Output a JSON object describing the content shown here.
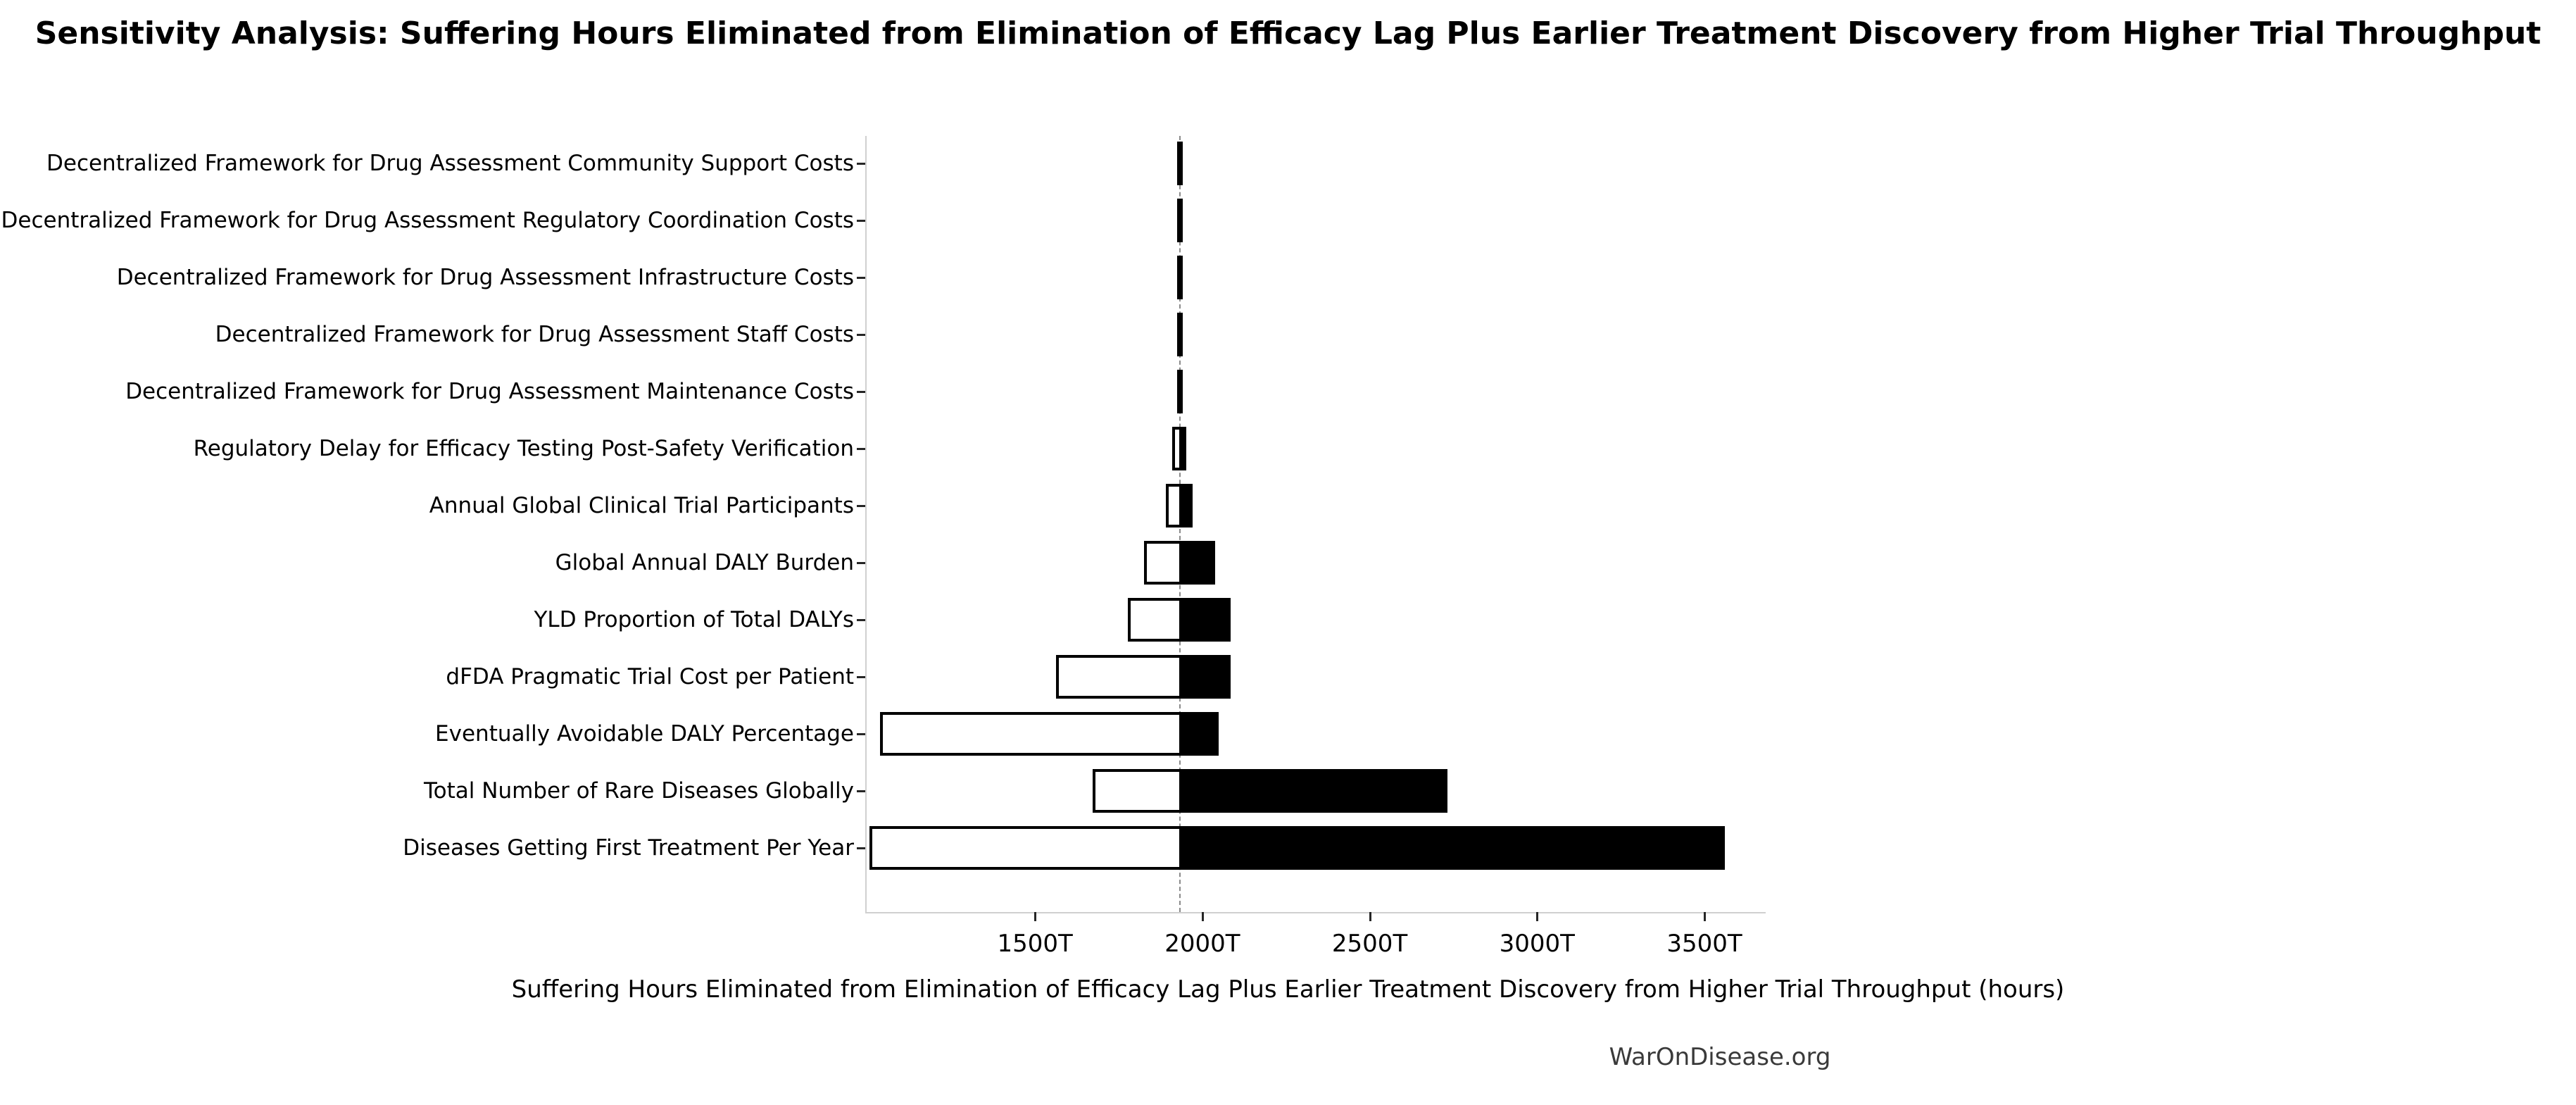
{
  "title": "Sensitivity Analysis: Suffering Hours Eliminated from Elimination of Efficacy Lag Plus Earlier Treatment Discovery from Higher Trial Throughput",
  "footer": "WarOnDisease.org",
  "chart_data": {
    "type": "bar",
    "subtype": "tornado-sensitivity",
    "orientation": "horizontal",
    "title": "Sensitivity Analysis: Suffering Hours Eliminated from Elimination of Efficacy Lag Plus Earlier Treatment Discovery from Higher Trial Throughput",
    "xlabel": "Suffering Hours Eliminated from Elimination of Efficacy Lag Plus Earlier Treatment Discovery from Higher Trial Throughput (hours)",
    "baseline_value": 1931,
    "value_unit": "T (trillions of hours)",
    "xlim": [
      997,
      3683
    ],
    "grid": false,
    "legend": "none",
    "x_ticks": [
      {
        "value": 1500,
        "label": "1500T"
      },
      {
        "value": 2000,
        "label": "2000T"
      },
      {
        "value": 2500,
        "label": "2500T"
      },
      {
        "value": 3000,
        "label": "3000T"
      },
      {
        "value": 3500,
        "label": "3500T"
      }
    ],
    "bars": [
      {
        "label": "Decentralized Framework for Drug Assessment Community Support Costs",
        "low": 1924,
        "high": 1938
      },
      {
        "label": "Decentralized Framework for Drug Assessment Regulatory Coordination Costs",
        "low": 1924,
        "high": 1938
      },
      {
        "label": "Decentralized Framework for Drug Assessment Infrastructure Costs",
        "low": 1924,
        "high": 1938
      },
      {
        "label": "Decentralized Framework for Drug Assessment Staff Costs",
        "low": 1924,
        "high": 1938
      },
      {
        "label": "Decentralized Framework for Drug Assessment Maintenance Costs",
        "low": 1924,
        "high": 1938
      },
      {
        "label": "Regulatory Delay for Efficacy Testing Post-Safety Verification",
        "low": 1910,
        "high": 1952
      },
      {
        "label": "Annual Global Clinical Trial Participants",
        "low": 1891,
        "high": 1971
      },
      {
        "label": "Global Annual DALY Burden",
        "low": 1826,
        "high": 2039
      },
      {
        "label": "YLD Proportion of Total DALYs",
        "low": 1777,
        "high": 2084
      },
      {
        "label": "dFDA Pragmatic Trial Cost per Patient",
        "low": 1562,
        "high": 2085
      },
      {
        "label": "Eventually Avoidable DALY Percentage",
        "low": 1036,
        "high": 2048
      },
      {
        "label": "Total Number of Rare Diseases Globally",
        "low": 1673,
        "high": 2733
      },
      {
        "label": "Diseases Getting First Treatment Per Year",
        "low": 1006,
        "high": 3562
      }
    ],
    "bar_style": {
      "fill_below_baseline": "#ffffff",
      "fill_above_baseline": "#000000",
      "edge_color": "#000000"
    }
  },
  "colors": {
    "background": "#ffffff",
    "bar_edge": "#000000",
    "bar_fill_right": "#000000",
    "bar_fill_left": "#ffffff",
    "spine": "#d0d0d0",
    "baseline_dash": "#8a8a8a",
    "tick": "#262626",
    "footer_text": "#3a3a3a"
  }
}
